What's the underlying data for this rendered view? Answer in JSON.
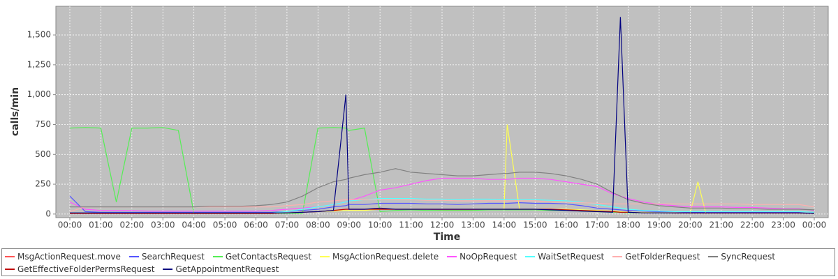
{
  "chart_data": {
    "type": "line",
    "xlabel": "Time",
    "ylabel": "calls/min",
    "x": [
      0,
      0.5,
      1,
      1.5,
      2,
      2.5,
      3,
      3.5,
      4,
      4.5,
      5,
      5.5,
      6,
      6.5,
      7,
      7.5,
      8,
      8.5,
      8.9,
      9,
      9.5,
      10,
      10.5,
      11,
      11.5,
      12,
      12.5,
      13,
      13.5,
      14,
      14.1,
      14.5,
      15,
      15.5,
      16,
      16.5,
      17,
      17.5,
      17.75,
      18,
      18.5,
      19,
      19.5,
      20,
      20.25,
      20.5,
      21,
      21.5,
      22,
      22.5,
      23,
      23.5,
      24
    ],
    "xlim": [
      -0.45,
      24.45
    ],
    "xticks": [
      {
        "value": 0,
        "label": "00:00"
      },
      {
        "value": 1,
        "label": "01:00"
      },
      {
        "value": 2,
        "label": "02:00"
      },
      {
        "value": 3,
        "label": "03:00"
      },
      {
        "value": 4,
        "label": "04:00"
      },
      {
        "value": 5,
        "label": "05:00"
      },
      {
        "value": 6,
        "label": "06:00"
      },
      {
        "value": 7,
        "label": "07:00"
      },
      {
        "value": 8,
        "label": "08:00"
      },
      {
        "value": 9,
        "label": "09:00"
      },
      {
        "value": 10,
        "label": "10:00"
      },
      {
        "value": 11,
        "label": "11:00"
      },
      {
        "value": 12,
        "label": "12:00"
      },
      {
        "value": 13,
        "label": "13:00"
      },
      {
        "value": 14,
        "label": "14:00"
      },
      {
        "value": 15,
        "label": "15:00"
      },
      {
        "value": 16,
        "label": "16:00"
      },
      {
        "value": 17,
        "label": "17:00"
      },
      {
        "value": 18,
        "label": "18:00"
      },
      {
        "value": 19,
        "label": "19:00"
      },
      {
        "value": 20,
        "label": "20:00"
      },
      {
        "value": 21,
        "label": "21:00"
      },
      {
        "value": 22,
        "label": "22:00"
      },
      {
        "value": 23,
        "label": "23:00"
      },
      {
        "value": 24,
        "label": "00:00"
      }
    ],
    "ylim": [
      -30,
      1740
    ],
    "yticks": [
      0,
      250,
      500,
      750,
      {
        "value": 1000,
        "label": "1,000"
      },
      {
        "value": 1250,
        "label": "1,250"
      },
      {
        "value": 1500,
        "label": "1,500"
      }
    ],
    "grid": true,
    "series": [
      {
        "name": "MsgActionRequest.move",
        "color": "#ff5555",
        "values": [
          5,
          5,
          5,
          5,
          5,
          5,
          5,
          5,
          5,
          5,
          5,
          5,
          5,
          5,
          10,
          15,
          20,
          30,
          40,
          40,
          40,
          40,
          40,
          40,
          40,
          35,
          35,
          35,
          40,
          40,
          40,
          40,
          40,
          35,
          35,
          30,
          25,
          20,
          15,
          15,
          10,
          10,
          10,
          8,
          8,
          8,
          8,
          8,
          8,
          8,
          8,
          8,
          5
        ]
      },
      {
        "name": "SearchRequest",
        "color": "#5555ff",
        "values": [
          150,
          20,
          15,
          15,
          15,
          15,
          15,
          15,
          15,
          15,
          15,
          15,
          15,
          15,
          20,
          30,
          40,
          60,
          70,
          80,
          80,
          90,
          90,
          90,
          85,
          85,
          80,
          85,
          90,
          90,
          90,
          95,
          90,
          90,
          85,
          70,
          50,
          40,
          35,
          30,
          25,
          20,
          20,
          15,
          15,
          15,
          15,
          15,
          15,
          15,
          15,
          15,
          10
        ]
      },
      {
        "name": "GetContactsRequest",
        "color": "#55ee55",
        "values": [
          720,
          725,
          720,
          100,
          720,
          720,
          725,
          700,
          5,
          5,
          5,
          5,
          5,
          5,
          5,
          5,
          720,
          725,
          720,
          700,
          720,
          20,
          30,
          35,
          30,
          30,
          30,
          30,
          35,
          35,
          35,
          35,
          35,
          30,
          30,
          25,
          20,
          15,
          15,
          10,
          10,
          8,
          8,
          8,
          8,
          8,
          8,
          8,
          8,
          8,
          8,
          8,
          5
        ]
      },
      {
        "name": "MsgActionRequest.delete",
        "color": "#ffff55",
        "values": [
          5,
          5,
          5,
          5,
          5,
          5,
          5,
          5,
          5,
          5,
          5,
          5,
          5,
          5,
          10,
          15,
          20,
          25,
          30,
          30,
          30,
          40,
          40,
          40,
          40,
          40,
          40,
          40,
          40,
          40,
          750,
          40,
          40,
          40,
          40,
          35,
          30,
          25,
          20,
          15,
          15,
          10,
          10,
          10,
          270,
          10,
          10,
          10,
          10,
          10,
          10,
          10,
          8
        ]
      },
      {
        "name": "NoOpRequest",
        "color": "#ff55ff",
        "values": [
          100,
          40,
          30,
          30,
          30,
          25,
          25,
          25,
          25,
          25,
          25,
          25,
          25,
          30,
          40,
          50,
          60,
          80,
          100,
          110,
          150,
          200,
          220,
          250,
          280,
          300,
          300,
          300,
          290,
          290,
          290,
          300,
          300,
          290,
          270,
          250,
          230,
          170,
          150,
          130,
          100,
          80,
          70,
          60,
          60,
          60,
          60,
          55,
          55,
          50,
          45,
          45,
          30
        ]
      },
      {
        "name": "WaitSetRequest",
        "color": "#55ffff",
        "values": [
          10,
          10,
          10,
          10,
          10,
          10,
          10,
          10,
          10,
          10,
          10,
          10,
          10,
          10,
          20,
          40,
          60,
          80,
          100,
          110,
          120,
          130,
          130,
          130,
          125,
          125,
          120,
          125,
          125,
          120,
          120,
          120,
          120,
          115,
          110,
          100,
          80,
          60,
          50,
          40,
          30,
          25,
          20,
          20,
          20,
          20,
          20,
          20,
          20,
          20,
          20,
          20,
          15
        ]
      },
      {
        "name": "GetFolderRequest",
        "color": "#ffafaf",
        "values": [
          20,
          60,
          60,
          60,
          60,
          60,
          60,
          60,
          60,
          60,
          60,
          60,
          60,
          60,
          70,
          80,
          100,
          110,
          120,
          120,
          120,
          120,
          120,
          120,
          115,
          115,
          110,
          110,
          110,
          110,
          110,
          110,
          110,
          100,
          100,
          95,
          90,
          85,
          85,
          85,
          85,
          85,
          85,
          85,
          85,
          85,
          85,
          85,
          80,
          80,
          80,
          80,
          60
        ]
      },
      {
        "name": "SyncRequest",
        "color": "#808080",
        "values": [
          60,
          60,
          60,
          60,
          60,
          60,
          60,
          60,
          60,
          65,
          65,
          65,
          70,
          80,
          100,
          150,
          220,
          270,
          290,
          300,
          330,
          350,
          380,
          350,
          340,
          330,
          320,
          320,
          330,
          340,
          340,
          350,
          350,
          340,
          320,
          290,
          250,
          180,
          150,
          120,
          90,
          70,
          60,
          50,
          50,
          50,
          50,
          45,
          45,
          40,
          40,
          40,
          35
        ]
      },
      {
        "name": "GetEffectiveFolderPermsRequest",
        "color": "#c00000",
        "values": [
          5,
          5,
          5,
          5,
          5,
          5,
          5,
          5,
          5,
          5,
          5,
          5,
          5,
          5,
          10,
          15,
          20,
          30,
          40,
          40,
          40,
          40,
          40,
          40,
          40,
          40,
          40,
          40,
          40,
          40,
          40,
          40,
          40,
          40,
          35,
          30,
          25,
          20,
          15,
          15,
          10,
          10,
          8,
          8,
          8,
          8,
          8,
          8,
          8,
          8,
          8,
          8,
          5
        ]
      },
      {
        "name": "GetAppointmentRequest",
        "color": "#000080",
        "values": [
          10,
          10,
          10,
          10,
          10,
          10,
          10,
          10,
          10,
          10,
          10,
          10,
          10,
          10,
          10,
          15,
          20,
          30,
          1000,
          40,
          40,
          50,
          40,
          40,
          40,
          40,
          40,
          40,
          40,
          40,
          40,
          40,
          40,
          35,
          30,
          25,
          20,
          15,
          1650,
          15,
          10,
          10,
          10,
          10,
          10,
          10,
          10,
          10,
          10,
          10,
          10,
          10,
          5
        ]
      }
    ]
  }
}
